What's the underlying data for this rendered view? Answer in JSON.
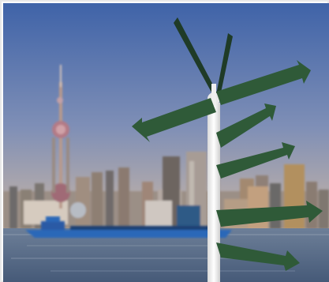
{
  "scene": {
    "subject": "signpost-with-arrows",
    "background": "city-skyline-waterfront",
    "colors": {
      "sky_top": "#3f63a8",
      "sky_bottom": "#c9b6a6",
      "water": "#5b6f8e",
      "sign": "#2f5a38",
      "sign_dark": "#1f3b27",
      "pole": "#f2f2f2",
      "boat": "#2b67b8"
    }
  }
}
